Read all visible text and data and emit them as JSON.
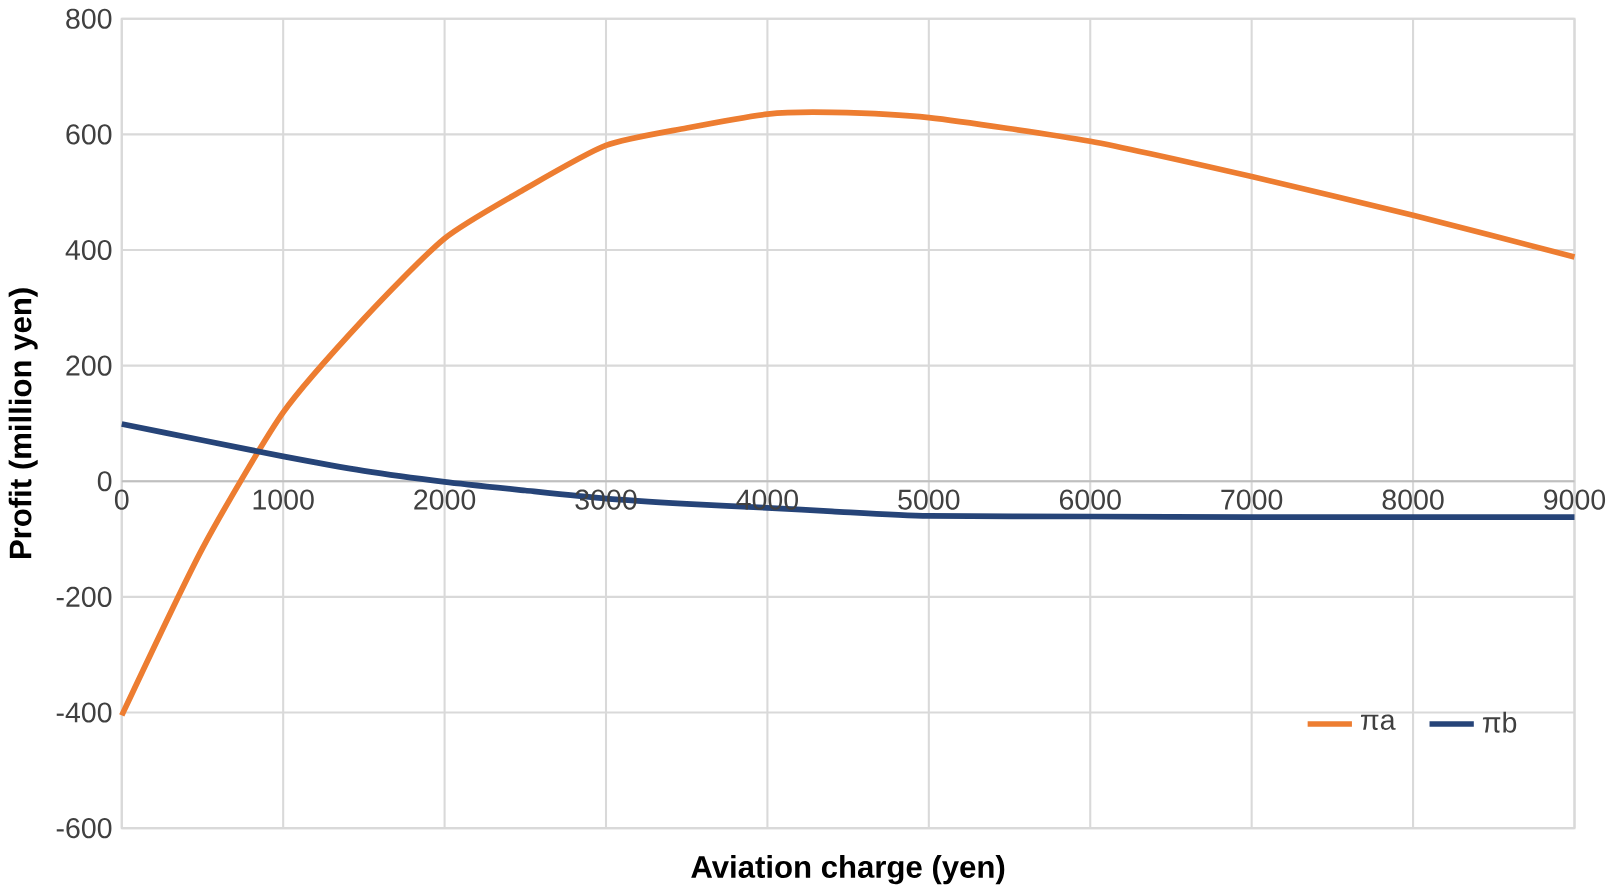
{
  "chart_data": {
    "type": "line",
    "xlabel": "Aviation charge (yen)",
    "ylabel": "Profit (million yen)",
    "x": [
      0,
      500,
      1000,
      1500,
      2000,
      2500,
      3000,
      3500,
      4000,
      4400,
      5000,
      6000,
      7000,
      8000,
      9000
    ],
    "series": [
      {
        "name": "πa",
        "color": "#ed7d31",
        "values": [
          -405,
          -116,
          119,
          281,
          420,
          506,
          581,
          611,
          635,
          638,
          629,
          588,
          527,
          460,
          388
        ]
      },
      {
        "name": "πb",
        "color": "#264478",
        "values": [
          99,
          71,
          43,
          18,
          -1,
          -16,
          -30,
          -39,
          -46,
          -52,
          -60,
          -61,
          -62,
          -62,
          -62
        ]
      }
    ],
    "xlim": [
      0,
      9000
    ],
    "xticks": [
      0,
      1000,
      2000,
      3000,
      4000,
      5000,
      6000,
      7000,
      8000,
      9000
    ],
    "ylim": [
      -600,
      800
    ],
    "yticks": [
      -600,
      -400,
      -200,
      0,
      200,
      400,
      600,
      800
    ],
    "grid": true,
    "legend": "bottom right",
    "marker": "none",
    "line_style": "solid"
  }
}
